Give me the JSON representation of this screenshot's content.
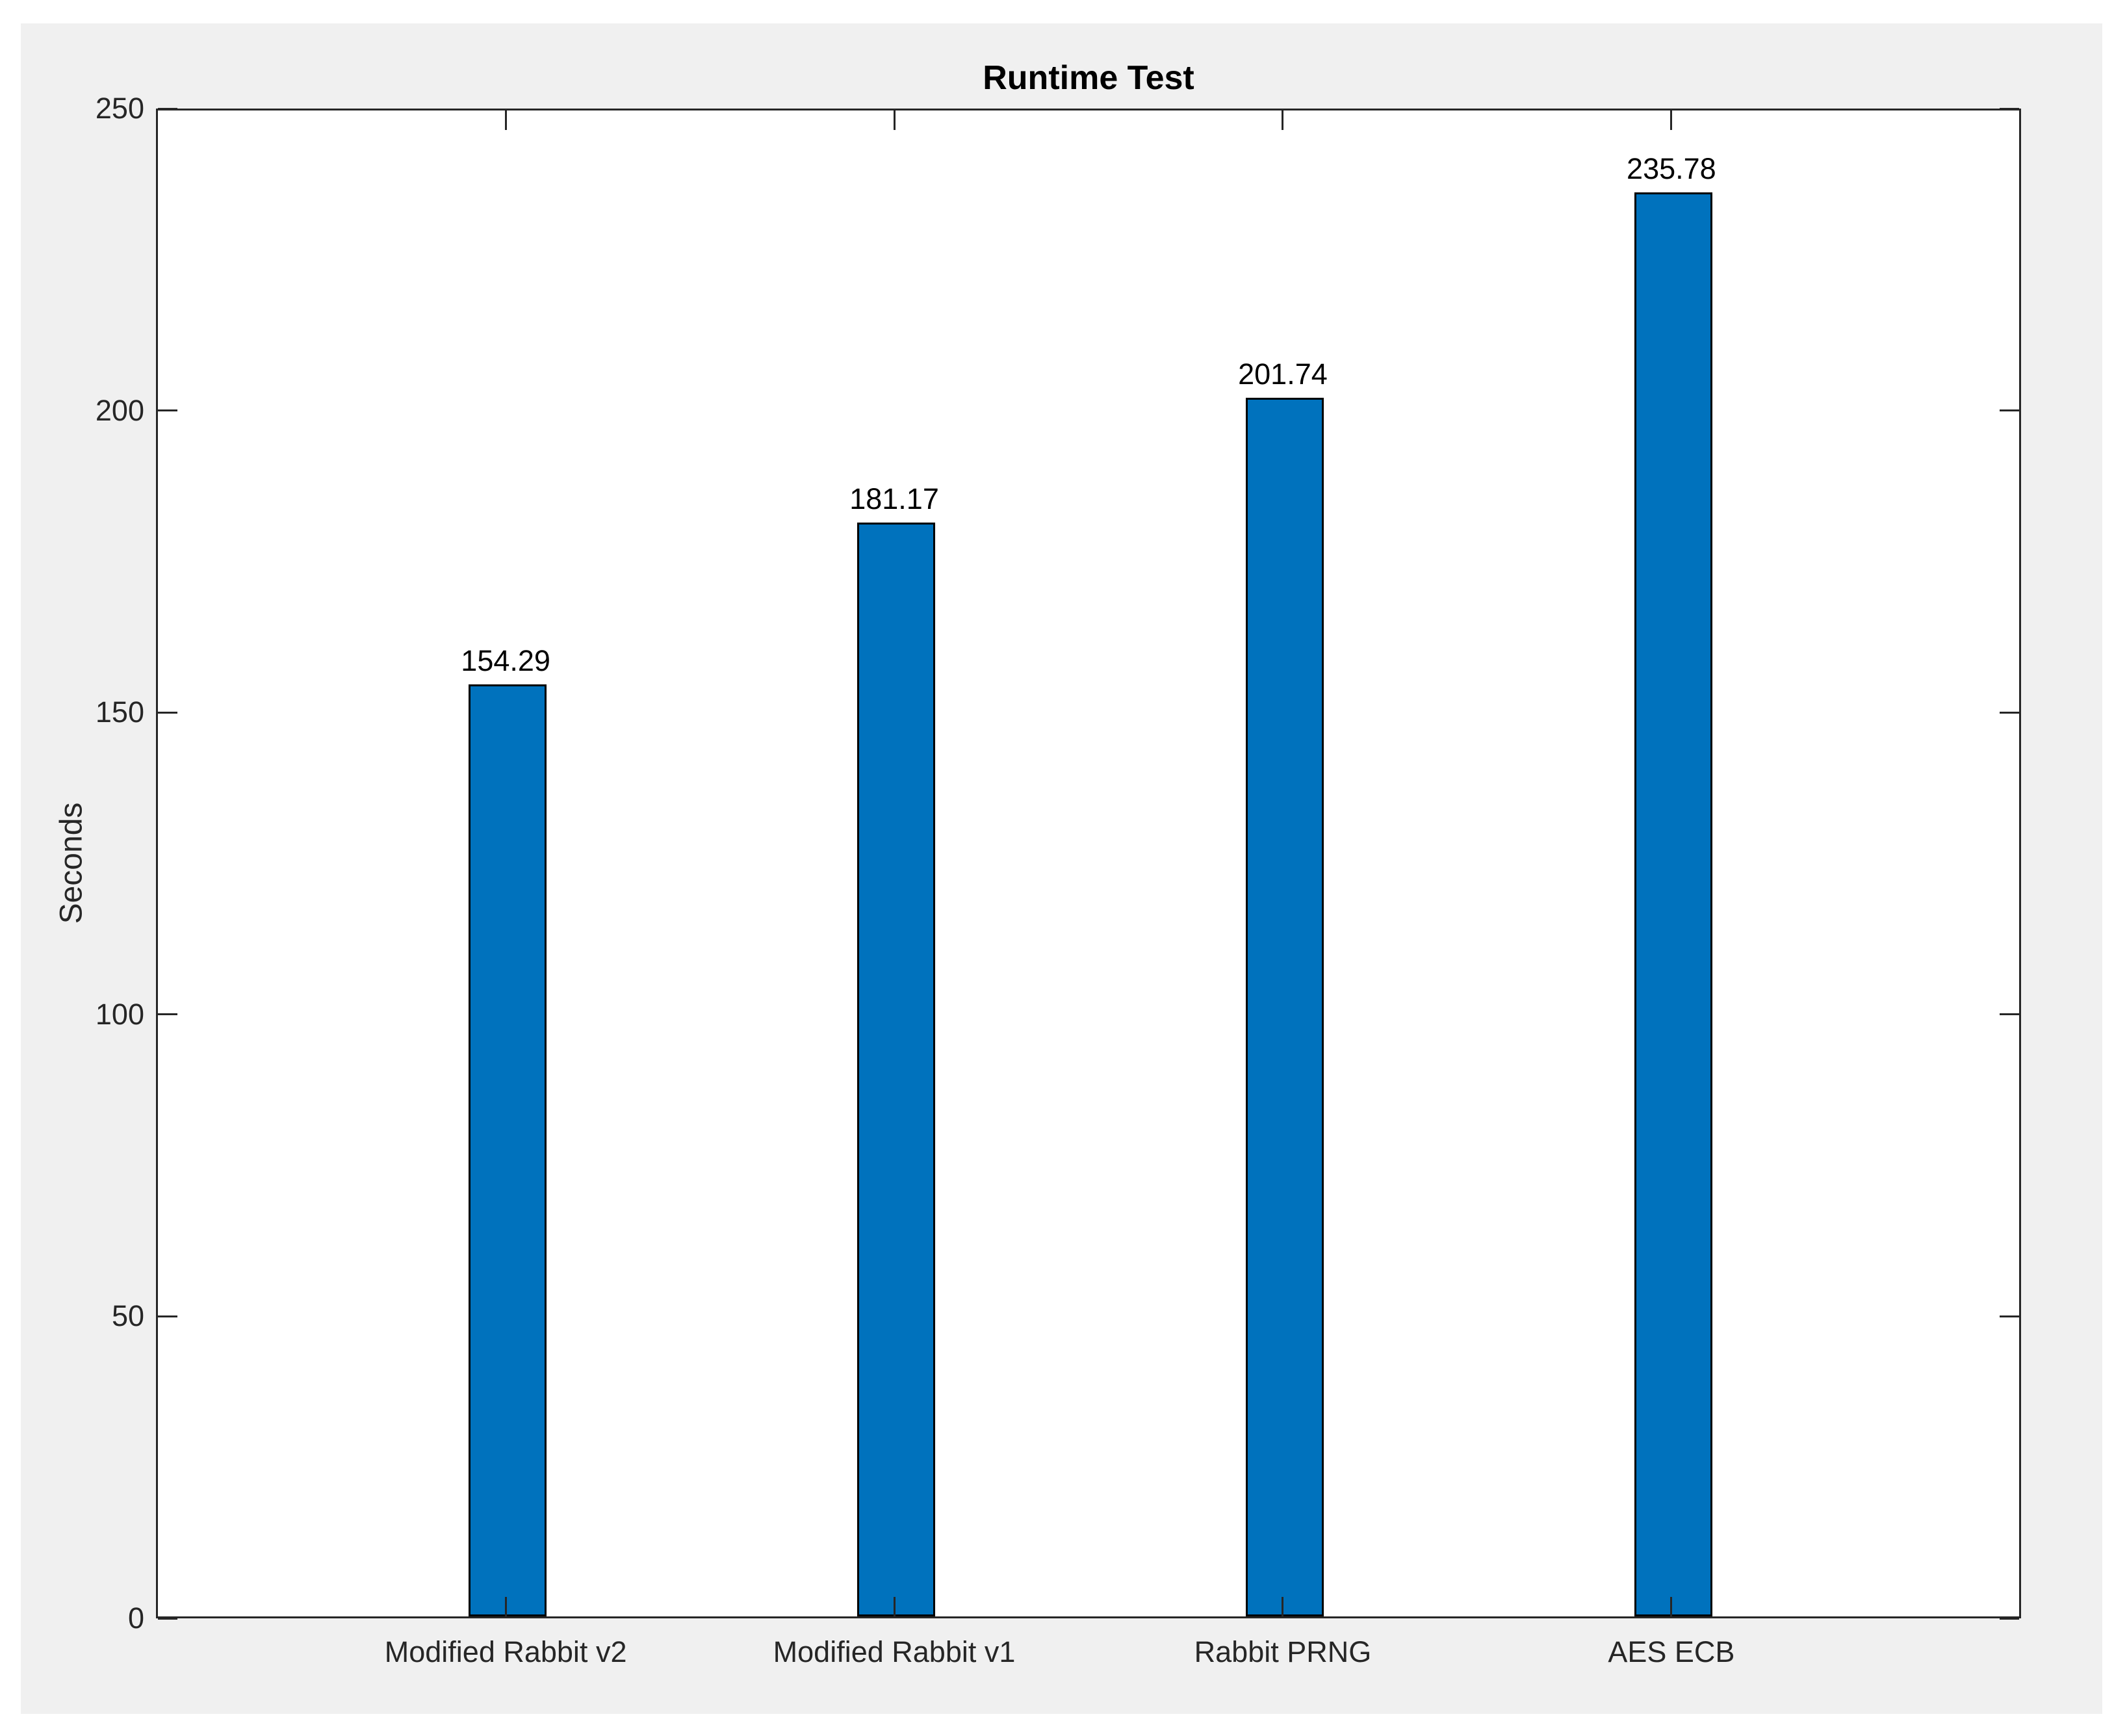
{
  "chart_data": {
    "type": "bar",
    "title": "Runtime Test",
    "xlabel": "",
    "ylabel": "Seconds",
    "categories": [
      "Modified Rabbit v2",
      "Modified Rabbit v1",
      "Rabbit PRNG",
      "AES ECB"
    ],
    "values": [
      154.29,
      181.17,
      201.74,
      235.78
    ],
    "bar_labels": [
      "154.29",
      "181.17",
      "201.74",
      "235.78"
    ],
    "x_positions": [
      1,
      2,
      3,
      4
    ],
    "xlim": [
      0.1,
      4.9
    ],
    "ylim": [
      0,
      250
    ],
    "yticks": [
      0,
      50,
      100,
      150,
      200,
      250
    ],
    "ytick_labels": [
      "0",
      "50",
      "100",
      "150",
      "200",
      "250"
    ],
    "bar_width_data_units": 0.2,
    "grid": false,
    "legend": null,
    "box": true,
    "tick_direction": "in",
    "bar_color": "#0072BD",
    "bar_edge_color": "#000000",
    "axes_color": "#262626",
    "figure_background": "#F0F0F0",
    "plot_background": "#FFFFFF",
    "title_color": "#000000",
    "value_label_color": "#000000"
  }
}
